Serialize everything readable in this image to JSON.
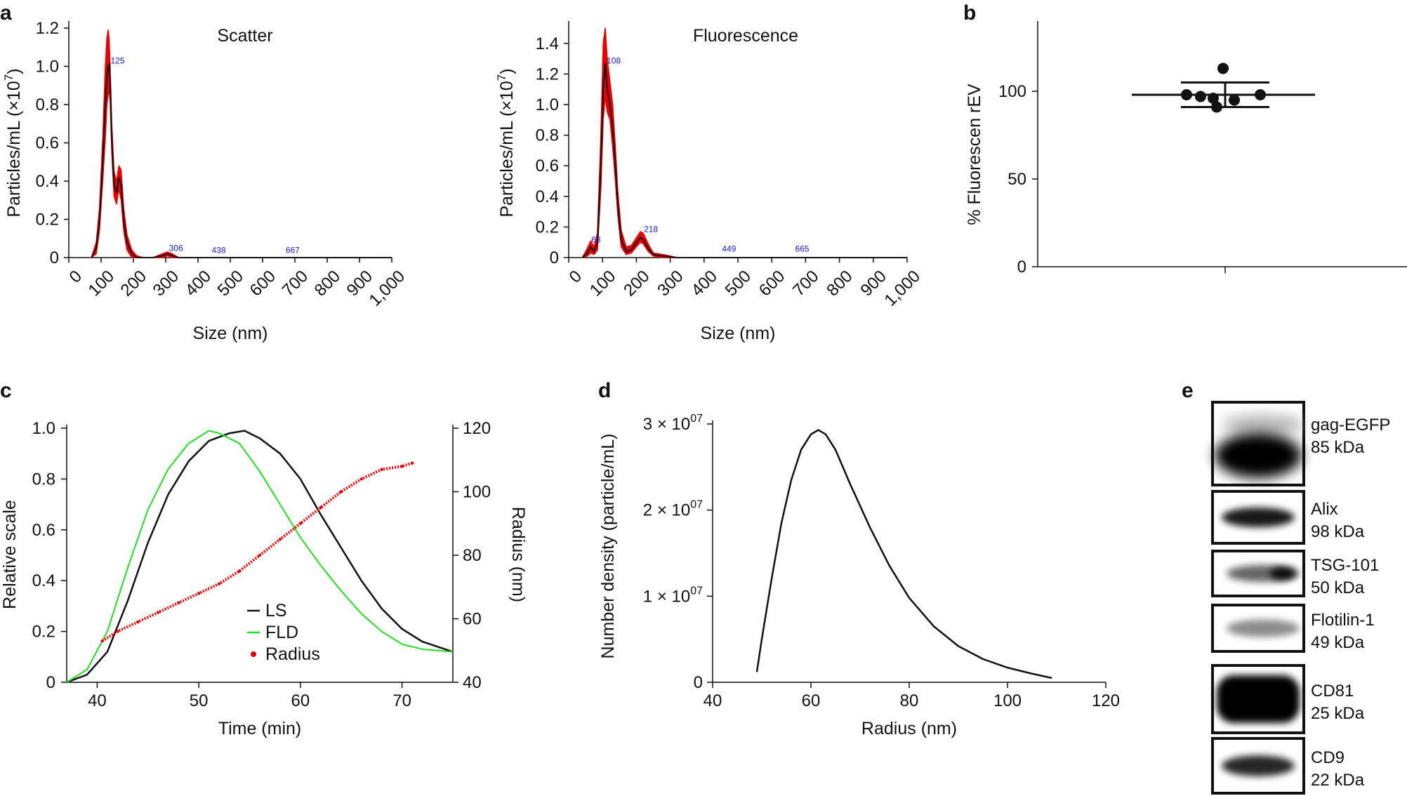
{
  "figure": {
    "panel_letters": [
      "a",
      "b",
      "c",
      "d",
      "e"
    ]
  },
  "colors": {
    "black": "#111111",
    "red": "#e60000",
    "green": "#22dd22",
    "peak_label": "#1a1ad6"
  },
  "chart_data": [
    {
      "id": "scatter",
      "type": "line",
      "title": "Scatter",
      "xlabel": "Size (nm)",
      "ylabel": "Particles/mL (×10",
      "ylabel_exp": "7",
      "ylabel_end": ")",
      "xlim": [
        0,
        1000
      ],
      "ylim": [
        0,
        1.2
      ],
      "xticks": [
        0,
        100,
        200,
        300,
        400,
        500,
        600,
        700,
        800,
        900,
        1000
      ],
      "xtick_labels": [
        "0",
        "100",
        "200",
        "300",
        "400",
        "500",
        "600",
        "700",
        "800",
        "900",
        "1,000"
      ],
      "yticks": [
        0,
        0.2,
        0.4,
        0.6,
        0.8,
        1.0,
        1.2
      ],
      "ytick_labels": [
        "0",
        "0.2",
        "0.4",
        "0.6",
        "0.8",
        "1.0",
        "1.2"
      ],
      "peak_labels": [
        {
          "x": 125,
          "y": 1.0,
          "text": "125"
        },
        {
          "x": 306,
          "y": 0.02,
          "text": "306"
        },
        {
          "x": 438,
          "y": 0.01,
          "text": "438"
        },
        {
          "x": 667,
          "y": 0.01,
          "text": "667"
        }
      ],
      "series": [
        {
          "name": "mean",
          "color": "#111111",
          "x": [
            70,
            85,
            95,
            105,
            113,
            118,
            122,
            125,
            128,
            133,
            140,
            148,
            155,
            162,
            170,
            180,
            195,
            210,
            230,
            260,
            290,
            306,
            320,
            340,
            400,
            500,
            600,
            700,
            800,
            900,
            1000
          ],
          "y": [
            0,
            0.05,
            0.2,
            0.5,
            0.8,
            0.95,
            1.0,
            1.01,
            0.92,
            0.62,
            0.38,
            0.34,
            0.42,
            0.38,
            0.2,
            0.08,
            0.02,
            0.0,
            0.0,
            0.0,
            0.01,
            0.02,
            0.01,
            0.0,
            0.0,
            0.0,
            0.0,
            0.0,
            0.0,
            0.0,
            0.0
          ]
        },
        {
          "name": "error",
          "color": "#e60000",
          "x": [
            70,
            85,
            95,
            105,
            113,
            118,
            122,
            125,
            128,
            133,
            140,
            148,
            155,
            162,
            170,
            180,
            195,
            210,
            230,
            260,
            290,
            306,
            320,
            340,
            400,
            500,
            600,
            700,
            800,
            900,
            1000
          ],
          "upper": [
            0,
            0.08,
            0.26,
            0.62,
            1.0,
            1.15,
            1.19,
            1.14,
            1.0,
            0.7,
            0.45,
            0.4,
            0.48,
            0.46,
            0.26,
            0.12,
            0.04,
            0.01,
            0.0,
            0.0,
            0.02,
            0.03,
            0.02,
            0.0,
            0.0,
            0.0,
            0.0,
            0.0,
            0.0,
            0.0,
            0.0
          ],
          "lower": [
            0,
            0.02,
            0.14,
            0.4,
            0.62,
            0.8,
            0.85,
            0.88,
            0.82,
            0.55,
            0.32,
            0.28,
            0.36,
            0.3,
            0.14,
            0.04,
            0.0,
            0.0,
            0.0,
            0.0,
            0.0,
            0.01,
            0.0,
            0.0,
            0.0,
            0.0,
            0.0,
            0.0,
            0.0,
            0.0,
            0.0
          ]
        }
      ]
    },
    {
      "id": "fluorescence",
      "type": "line",
      "title": "Fluorescence",
      "xlabel": "Size (nm)",
      "ylabel": "Particles/mL (×10",
      "ylabel_exp": "7",
      "ylabel_end": ")",
      "xlim": [
        0,
        1000
      ],
      "ylim": [
        0,
        1.5
      ],
      "xticks": [
        0,
        100,
        200,
        300,
        400,
        500,
        600,
        700,
        800,
        900,
        1000
      ],
      "xtick_labels": [
        "0",
        "100",
        "200",
        "300",
        "400",
        "500",
        "600",
        "700",
        "800",
        "900",
        "1,000"
      ],
      "yticks": [
        0,
        0.2,
        0.4,
        0.6,
        0.8,
        1.0,
        1.2,
        1.4
      ],
      "ytick_labels": [
        "0",
        "0.2",
        "0.4",
        "0.6",
        "0.8",
        "1.0",
        "1.2",
        "1.4"
      ],
      "peak_labels": [
        {
          "x": 63,
          "y": 0.08,
          "text": "63"
        },
        {
          "x": 108,
          "y": 1.25,
          "text": "108"
        },
        {
          "x": 218,
          "y": 0.15,
          "text": "218"
        },
        {
          "x": 449,
          "y": 0.02,
          "text": "449"
        },
        {
          "x": 665,
          "y": 0.02,
          "text": "665"
        }
      ],
      "series": [
        {
          "name": "mean",
          "color": "#111111",
          "x": [
            40,
            55,
            65,
            75,
            85,
            95,
            102,
            108,
            114,
            122,
            130,
            138,
            145,
            155,
            170,
            185,
            200,
            212,
            220,
            235,
            250,
            280,
            320,
            400,
            500,
            600,
            700,
            800,
            900,
            1000
          ],
          "y": [
            0,
            0.03,
            0.07,
            0.04,
            0.1,
            0.6,
            1.1,
            1.27,
            1.1,
            1.0,
            0.85,
            0.6,
            0.35,
            0.12,
            0.04,
            0.05,
            0.1,
            0.13,
            0.12,
            0.06,
            0.02,
            0.01,
            0.0,
            0.0,
            0.0,
            0.0,
            0.0,
            0.0,
            0.0,
            0.0
          ]
        },
        {
          "name": "error",
          "color": "#e60000",
          "x": [
            40,
            55,
            65,
            75,
            85,
            95,
            102,
            108,
            114,
            122,
            130,
            138,
            145,
            155,
            170,
            185,
            200,
            212,
            220,
            235,
            250,
            280,
            320,
            400,
            500,
            600,
            700,
            800,
            900,
            1000
          ],
          "upper": [
            0,
            0.06,
            0.11,
            0.07,
            0.16,
            0.8,
            1.4,
            1.5,
            1.3,
            1.15,
            1.0,
            0.72,
            0.44,
            0.18,
            0.07,
            0.08,
            0.13,
            0.17,
            0.16,
            0.09,
            0.03,
            0.02,
            0.0,
            0.0,
            0.0,
            0.0,
            0.0,
            0.0,
            0.0,
            0.0
          ],
          "lower": [
            0,
            0.01,
            0.03,
            0.02,
            0.05,
            0.45,
            0.9,
            1.05,
            0.95,
            0.9,
            0.72,
            0.5,
            0.28,
            0.07,
            0.02,
            0.03,
            0.07,
            0.1,
            0.09,
            0.04,
            0.01,
            0.0,
            0.0,
            0.0,
            0.0,
            0.0,
            0.0,
            0.0,
            0.0,
            0.0
          ]
        }
      ]
    },
    {
      "id": "percent",
      "type": "scatter",
      "ylabel": "% Fluorescen rEV",
      "ylim": [
        0,
        140
      ],
      "yticks": [
        0,
        50,
        100
      ],
      "ytick_labels": [
        "0",
        "50",
        "100"
      ],
      "points": [
        113,
        98,
        97,
        96,
        91,
        95,
        98
      ],
      "mean": 98,
      "sd_upper": 105,
      "sd_lower": 91
    },
    {
      "id": "af4",
      "type": "line",
      "xlabel": "Time (min)",
      "ylabel_left": "Relative scale",
      "ylabel_right": "Radius (nm)",
      "xlim": [
        37,
        75
      ],
      "ylim_left": [
        0,
        1.0
      ],
      "ylim_right": [
        40,
        120
      ],
      "xticks": [
        40,
        50,
        60,
        70
      ],
      "xtick_labels": [
        "40",
        "50",
        "60",
        "70"
      ],
      "yticks_left": [
        0,
        0.2,
        0.4,
        0.6,
        0.8,
        1.0
      ],
      "ytick_labels_left": [
        "0",
        "0.2",
        "0.4",
        "0.6",
        "0.8",
        "1.0"
      ],
      "yticks_right": [
        40,
        60,
        80,
        100,
        120
      ],
      "ytick_labels_right": [
        "40",
        "60",
        "80",
        "100",
        "120"
      ],
      "legend": [
        {
          "label": "LS",
          "marker": "line",
          "color": "#111111"
        },
        {
          "label": "FLD",
          "marker": "line",
          "color": "#22dd22"
        },
        {
          "label": "Radius",
          "marker": "dot",
          "color": "#e60000"
        }
      ],
      "series": [
        {
          "name": "LS",
          "color": "#111111",
          "x": [
            37,
            39,
            41,
            43,
            45,
            47,
            49,
            51,
            53,
            54.5,
            56,
            58,
            60,
            62,
            64,
            66,
            68,
            70,
            72,
            75
          ],
          "y": [
            0,
            0.03,
            0.12,
            0.32,
            0.55,
            0.74,
            0.87,
            0.95,
            0.98,
            0.99,
            0.96,
            0.9,
            0.8,
            0.66,
            0.53,
            0.4,
            0.29,
            0.21,
            0.16,
            0.12
          ]
        },
        {
          "name": "FLD",
          "color": "#22dd22",
          "x": [
            37,
            39,
            41,
            43,
            45,
            47,
            49,
            51,
            52,
            54,
            56,
            58,
            60,
            62,
            64,
            66,
            68,
            70,
            72,
            75
          ],
          "y": [
            0,
            0.05,
            0.2,
            0.45,
            0.68,
            0.84,
            0.94,
            0.99,
            0.98,
            0.94,
            0.83,
            0.7,
            0.57,
            0.46,
            0.36,
            0.27,
            0.2,
            0.15,
            0.13,
            0.12
          ]
        },
        {
          "name": "Radius",
          "color": "#e60000",
          "axis": "right",
          "x": [
            40.5,
            42,
            44,
            46,
            48,
            50,
            52,
            54,
            56,
            58,
            60,
            62,
            64,
            66,
            68,
            70,
            71
          ],
          "y": [
            53,
            56,
            59,
            62,
            65,
            68,
            71,
            75,
            80,
            85,
            90,
            95,
            100,
            104,
            107,
            108,
            109
          ]
        }
      ]
    },
    {
      "id": "density",
      "type": "line",
      "xlabel": "Radius (nm)",
      "ylabel": "Number density (particle/mL)",
      "xlim": [
        40,
        120
      ],
      "ylim": [
        0,
        3.0
      ],
      "xticks": [
        40,
        60,
        80,
        100,
        120
      ],
      "xtick_labels": [
        "40",
        "60",
        "80",
        "100",
        "120"
      ],
      "yticks": [
        0,
        1,
        2,
        3
      ],
      "ytick_labels": [
        {
          "base": "0",
          "exp": ""
        },
        {
          "base": "1 × 10",
          "exp": "07"
        },
        {
          "base": "2 × 10",
          "exp": "07"
        },
        {
          "base": "3 × 10",
          "exp": "07"
        }
      ],
      "series": [
        {
          "name": "density",
          "color": "#111111",
          "x": [
            49,
            50,
            52,
            54,
            56,
            58,
            60,
            61.5,
            63,
            65,
            68,
            72,
            76,
            80,
            85,
            90,
            95,
            100,
            105,
            109
          ],
          "y": [
            0.12,
            0.5,
            1.2,
            1.85,
            2.35,
            2.7,
            2.88,
            2.93,
            2.88,
            2.7,
            2.3,
            1.8,
            1.35,
            0.98,
            0.65,
            0.42,
            0.27,
            0.17,
            0.1,
            0.05
          ]
        }
      ]
    }
  ],
  "blots": [
    {
      "name": "gag-EGFP",
      "mw": "85 kDa",
      "band_intensity": 1.0
    },
    {
      "name": "Alix",
      "mw": "98 kDa",
      "band_intensity": 0.9
    },
    {
      "name": "TSG-101",
      "mw": "50 kDa",
      "band_intensity": 0.6
    },
    {
      "name": "Flotilin-1",
      "mw": "49 kDa",
      "band_intensity": 0.45
    },
    {
      "name": "CD81",
      "mw": "25 kDa",
      "band_intensity": 1.0
    },
    {
      "name": "CD9",
      "mw": "22 kDa",
      "band_intensity": 0.85
    }
  ]
}
